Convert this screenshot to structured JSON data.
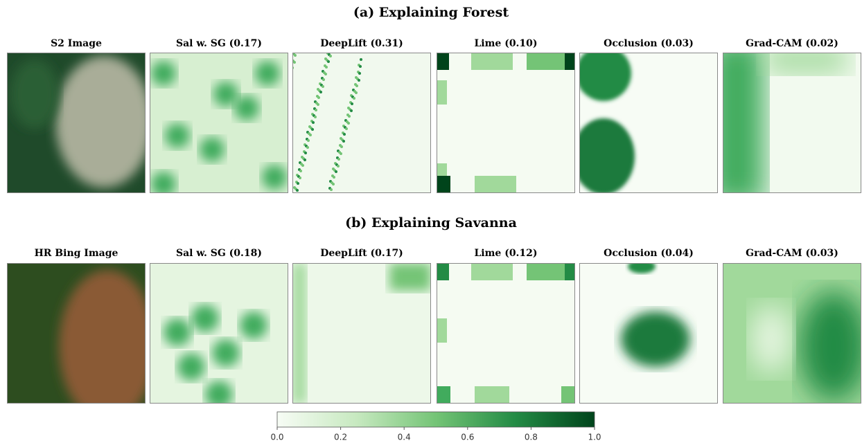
{
  "sections": [
    {
      "title": "(a) Explaining Forest",
      "panels": [
        "S2 Image",
        "Sal w. SG (0.17)",
        "DeepLift (0.31)",
        "Lime (0.10)",
        "Occlusion (0.03)",
        "Grad-CAM (0.02)"
      ]
    },
    {
      "title": "(b) Explaining Savanna",
      "panels": [
        "HR Bing Image",
        "Sal w. SG (0.18)",
        "DeepLift (0.17)",
        "Lime (0.12)",
        "Occlusion (0.04)",
        "Grad-CAM (0.03)"
      ]
    }
  ],
  "colorbar": {
    "ticks": [
      {
        "value": 0,
        "label": "0.0"
      },
      0.2,
      0.4,
      0.6,
      0.8,
      {
        "value": 1,
        "label": "1.0"
      }
    ]
  }
}
